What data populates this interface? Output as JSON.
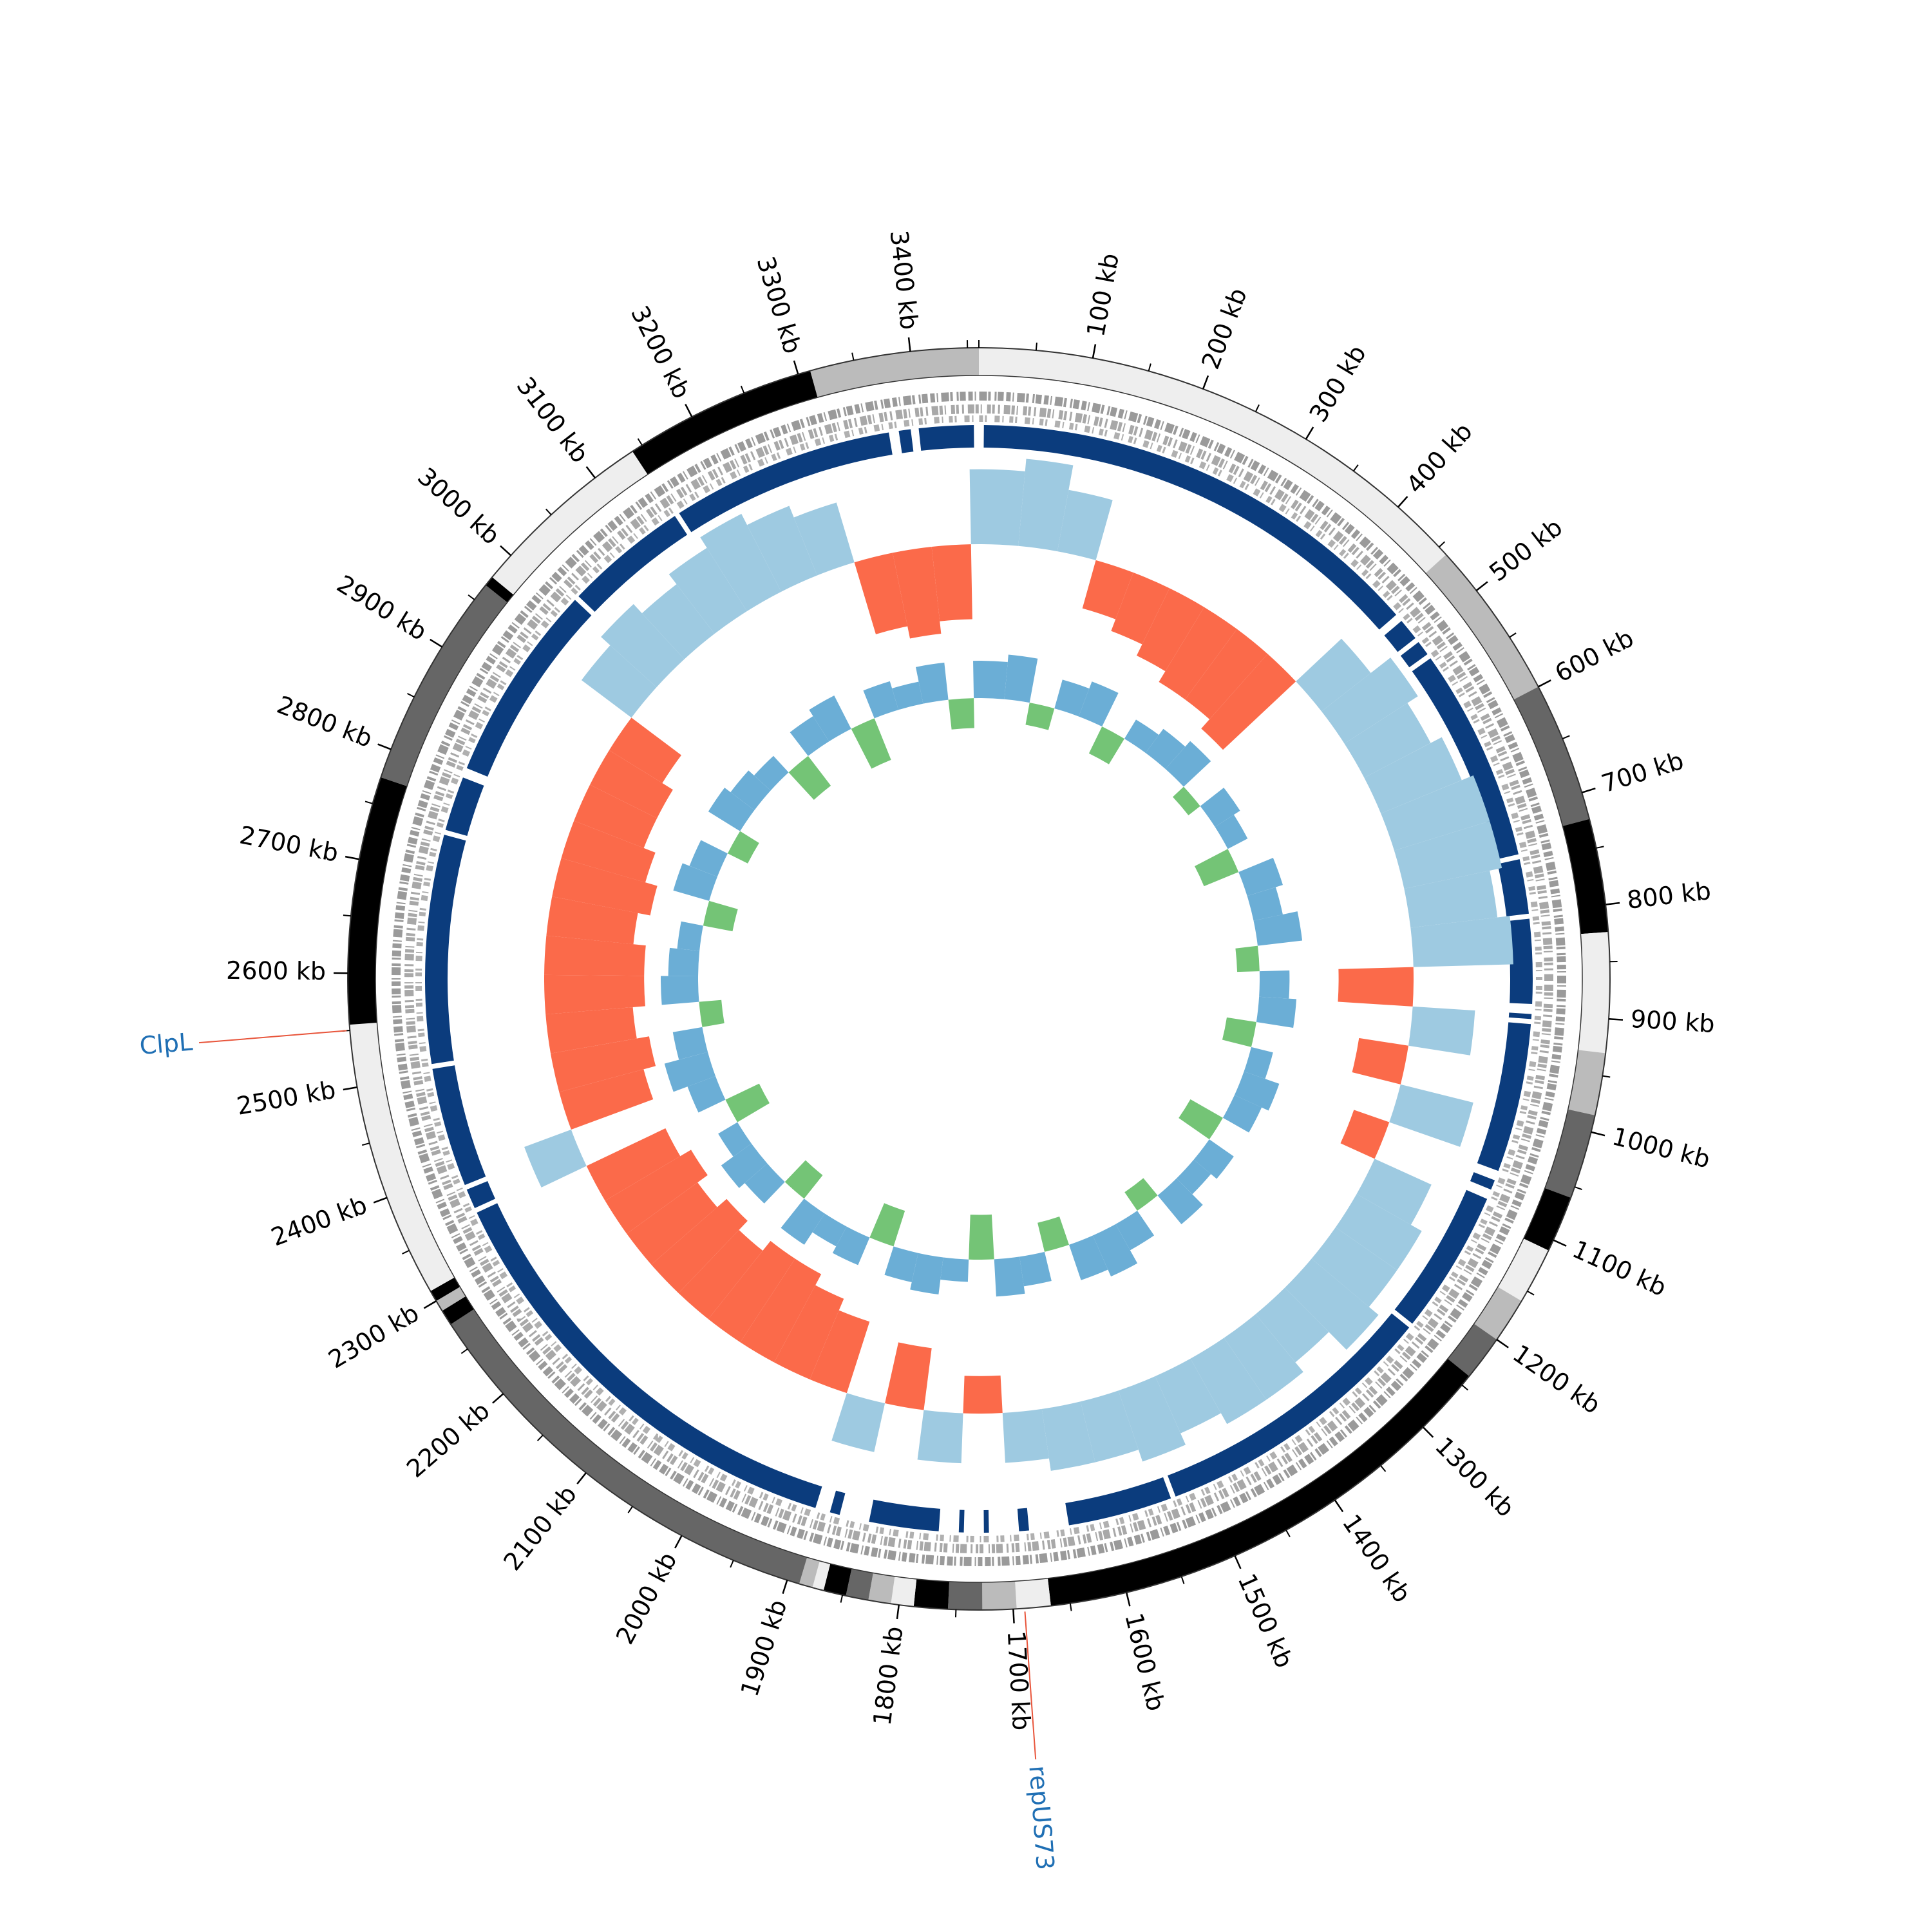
{
  "chart_data": {
    "type": "circos",
    "xlim": [
      0,
      3460
    ],
    "xticks": [
      {
        "value": 100,
        "label": "100 kb"
      },
      {
        "value": 200,
        "label": "200 kb"
      },
      {
        "value": 300,
        "label": "300 kb"
      },
      {
        "value": 400,
        "label": "400 kb"
      },
      {
        "value": 500,
        "label": "500 kb"
      },
      {
        "value": 600,
        "label": "600 kb"
      },
      {
        "value": 700,
        "label": "700 kb"
      },
      {
        "value": 800,
        "label": "800 kb"
      },
      {
        "value": 900,
        "label": "900 kb"
      },
      {
        "value": 1000,
        "label": "1000 kb"
      },
      {
        "value": 1100,
        "label": "1100 kb"
      },
      {
        "value": 1200,
        "label": "1200 kb"
      },
      {
        "value": 1300,
        "label": "1300 kb"
      },
      {
        "value": 1400,
        "label": "1400 kb"
      },
      {
        "value": 1500,
        "label": "1500 kb"
      },
      {
        "value": 1600,
        "label": "1600 kb"
      },
      {
        "value": 1700,
        "label": "1700 kb"
      },
      {
        "value": 1800,
        "label": "1800 kb"
      },
      {
        "value": 1900,
        "label": "1900 kb"
      },
      {
        "value": 2000,
        "label": "2000 kb"
      },
      {
        "value": 2100,
        "label": "2100 kb"
      },
      {
        "value": 2200,
        "label": "2200 kb"
      },
      {
        "value": 2300,
        "label": "2300 kb"
      },
      {
        "value": 2400,
        "label": "2400 kb"
      },
      {
        "value": 2500,
        "label": "2500 kb"
      },
      {
        "value": 2600,
        "label": "2600 kb"
      },
      {
        "value": 2700,
        "label": "2700 kb"
      },
      {
        "value": 2800,
        "label": "2800 kb"
      },
      {
        "value": 2900,
        "label": "2900 kb"
      },
      {
        "value": 3000,
        "label": "3000 kb"
      },
      {
        "value": 3100,
        "label": "3100 kb"
      },
      {
        "value": 3200,
        "label": "3200 kb"
      },
      {
        "value": 3300,
        "label": "3300 kb"
      },
      {
        "value": 3400,
        "label": "3400 kb"
      }
    ],
    "xminorticks": [
      0,
      50,
      100,
      150,
      200,
      250,
      300,
      350,
      400,
      450,
      500,
      550,
      600,
      650,
      700,
      750,
      800,
      850,
      900,
      950,
      1000,
      1050,
      1100,
      1150,
      1200,
      1250,
      1300,
      1350,
      1400,
      1450,
      1500,
      1550,
      1600,
      1650,
      1700,
      1750,
      1800,
      1850,
      1900,
      1950,
      2000,
      2050,
      2100,
      2150,
      2200,
      2250,
      2300,
      2350,
      2400,
      2450,
      2500,
      2550,
      2600,
      2650,
      2700,
      2750,
      2800,
      2850,
      2900,
      2950,
      3000,
      3050,
      3100,
      3150,
      3200,
      3250,
      3300,
      3350,
      3400,
      3450
    ],
    "bands": [
      {
        "start": 0,
        "end": 459,
        "color": "#eeeeee"
      },
      {
        "start": 459,
        "end": 600,
        "color": "#bbbbbb"
      },
      {
        "start": 600,
        "end": 724,
        "color": "#666666"
      },
      {
        "start": 724,
        "end": 824,
        "color": "#000000"
      },
      {
        "start": 824,
        "end": 930,
        "color": "#eeeeee"
      },
      {
        "start": 930,
        "end": 985,
        "color": "#bbbbbb"
      },
      {
        "start": 985,
        "end": 1060,
        "color": "#666666"
      },
      {
        "start": 1060,
        "end": 1110,
        "color": "#000000"
      },
      {
        "start": 1110,
        "end": 1160,
        "color": "#eeeeee"
      },
      {
        "start": 1160,
        "end": 1200,
        "color": "#bbbbbb"
      },
      {
        "start": 1200,
        "end": 1240,
        "color": "#666666"
      },
      {
        "start": 1240,
        "end": 1667,
        "color": "#000000"
      },
      {
        "start": 1667,
        "end": 1697,
        "color": "#eeeeee"
      },
      {
        "start": 1697,
        "end": 1727,
        "color": "#bbbbbb"
      },
      {
        "start": 1727,
        "end": 1757,
        "color": "#666666"
      },
      {
        "start": 1757,
        "end": 1787,
        "color": "#000000"
      },
      {
        "start": 1787,
        "end": 1807,
        "color": "#eeeeee"
      },
      {
        "start": 1807,
        "end": 1827,
        "color": "#bbbbbb"
      },
      {
        "start": 1827,
        "end": 1847,
        "color": "#666666"
      },
      {
        "start": 1847,
        "end": 1867,
        "color": "#000000"
      },
      {
        "start": 1867,
        "end": 1877,
        "color": "#eeeeee"
      },
      {
        "start": 1877,
        "end": 1889,
        "color": "#bbbbbb"
      },
      {
        "start": 1889,
        "end": 2276,
        "color": "#666666"
      },
      {
        "start": 2276,
        "end": 2290,
        "color": "#000000"
      },
      {
        "start": 2290,
        "end": 2300,
        "color": "#bbbbbb"
      },
      {
        "start": 2300,
        "end": 2310,
        "color": "#000000"
      },
      {
        "start": 2310,
        "end": 2555,
        "color": "#eeeeee"
      },
      {
        "start": 2555,
        "end": 2774,
        "color": "#000000"
      },
      {
        "start": 2774,
        "end": 2966,
        "color": "#666666"
      },
      {
        "start": 2966,
        "end": 2975,
        "color": "#000000"
      },
      {
        "start": 2975,
        "end": 3140,
        "color": "#eeeeee"
      },
      {
        "start": 3140,
        "end": 3311,
        "color": "#000000"
      },
      {
        "start": 3311,
        "end": 3460,
        "color": "#bbbbbb"
      }
    ],
    "segments_color": "#0b3c7d",
    "segments": [
      [
        5,
        470
      ],
      [
        478,
        500
      ],
      [
        505,
        520
      ],
      [
        525,
        740
      ],
      [
        745,
        800
      ],
      [
        805,
        890
      ],
      [
        900,
        905
      ],
      [
        910,
        1060
      ],
      [
        1070,
        1080
      ],
      [
        1090,
        1235
      ],
      [
        1240,
        1530
      ],
      [
        1535,
        1640
      ],
      [
        1680,
        1690
      ],
      [
        1720,
        1725
      ],
      [
        1745,
        1750
      ],
      [
        1770,
        1840
      ],
      [
        1870,
        1880
      ],
      [
        1895,
        2355
      ],
      [
        2360,
        2380
      ],
      [
        2385,
        2505
      ],
      [
        2510,
        2740
      ],
      [
        2745,
        2800
      ],
      [
        2810,
        3010
      ],
      [
        3015,
        3140
      ],
      [
        3145,
        3370
      ],
      [
        3380,
        3392
      ],
      [
        3400,
        3455
      ]
    ],
    "x": [
      0,
      50,
      100,
      150,
      200,
      250,
      300,
      350,
      400,
      450,
      500,
      550,
      600,
      650,
      700,
      750,
      800,
      850,
      900,
      950,
      1000,
      1050,
      1100,
      1150,
      1200,
      1250,
      1300,
      1350,
      1400,
      1450,
      1500,
      1550,
      1600,
      1650,
      1700,
      1750,
      1800,
      1850,
      1900,
      1950,
      2000,
      2050,
      2100,
      2150,
      2200,
      2250,
      2300,
      2350,
      2400,
      2450,
      2500,
      2550,
      2600,
      2650,
      2700,
      2750,
      2800,
      2850,
      2900,
      2950,
      3000,
      3050,
      3100,
      3150,
      3200,
      3250,
      3300,
      3350,
      3400,
      3450
    ],
    "tracks": [
      {
        "ylim": [
          -0.1,
          0.1
        ],
        "pos_color": "#9ecae1",
        "neg_color": "#fb6a4a",
        "values": [
          0.06,
          0.07,
          0.05,
          -0.04,
          -0.05,
          -0.06,
          -0.07,
          -0.07,
          -0.08,
          0.05,
          0.07,
          0.06,
          0.07,
          0.08,
          0.08,
          0.07,
          0.08,
          -0.06,
          0.05,
          -0.04,
          0.06,
          -0.03,
          0.05,
          0.06,
          0.06,
          0.07,
          0.05,
          0.06,
          0.06,
          0.05,
          0.06,
          0.05,
          0.05,
          0.04,
          -0.03,
          0.04,
          -0.05,
          0.04,
          -0.06,
          -0.07,
          -0.08,
          -0.08,
          -0.07,
          -0.08,
          -0.07,
          -0.08,
          -0.07,
          0.04,
          -0.07,
          -0.08,
          -0.07,
          -0.08,
          -0.08,
          -0.07,
          -0.08,
          -0.07,
          -0.06,
          -0.06,
          -0.05,
          0.05,
          0.06,
          0.05,
          0.06,
          0.07,
          0.06,
          0.05,
          -0.06,
          -0.07,
          -0.06,
          0.06
        ]
      },
      {
        "ylim": [
          -0.1,
          0.1
        ],
        "pos_color": "#6baed6",
        "neg_color": "#74c476",
        "values": [
          0.05,
          0.06,
          -0.03,
          0.04,
          0.05,
          -0.04,
          0.03,
          0.04,
          0.05,
          -0.02,
          0.04,
          0.03,
          -0.05,
          0.05,
          0.04,
          0.06,
          -0.03,
          0.04,
          0.05,
          -0.04,
          0.03,
          0.05,
          0.04,
          -0.05,
          0.04,
          0.03,
          0.05,
          -0.03,
          0.04,
          0.06,
          0.05,
          -0.04,
          0.04,
          0.05,
          -0.06,
          0.03,
          0.05,
          0.04,
          -0.05,
          0.04,
          0.03,
          0.05,
          -0.04,
          0.04,
          0.05,
          0.03,
          -0.05,
          0.04,
          0.06,
          0.04,
          -0.03,
          0.05,
          0.04,
          0.03,
          -0.04,
          0.05,
          0.04,
          -0.03,
          0.05,
          0.04,
          0.03,
          -0.05,
          0.04,
          0.05,
          -0.06,
          0.04,
          0.03,
          0.05,
          -0.04,
          0.05
        ]
      }
    ],
    "annotations": [
      {
        "x": 2550,
        "label": "ClpL"
      },
      {
        "x": 1690,
        "label": "repUS73"
      }
    ],
    "annotation_color": "#1f6fb4",
    "leader_color": "#e8553b"
  }
}
